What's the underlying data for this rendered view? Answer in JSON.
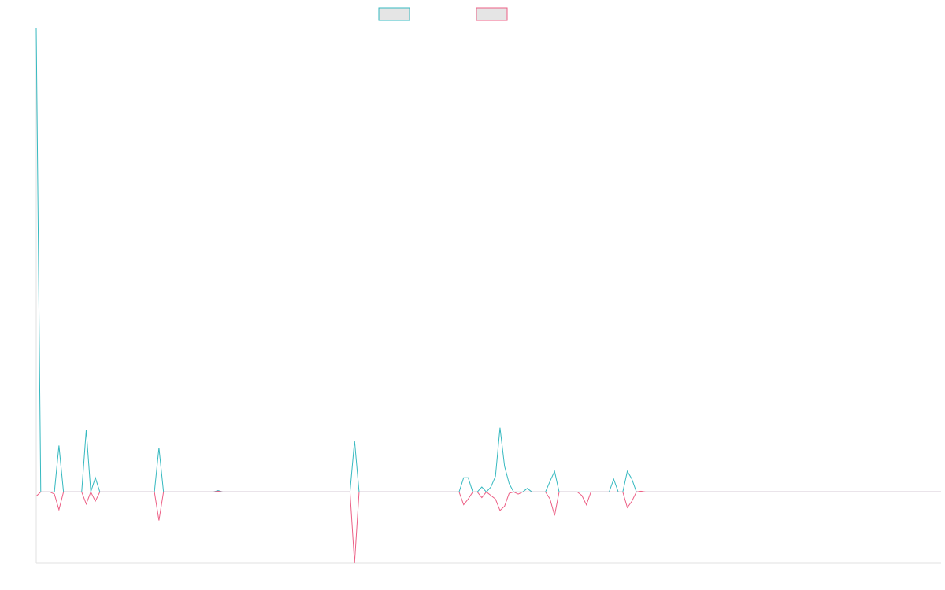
{
  "chart_data": {
    "type": "line",
    "x_count": 200,
    "ylim": [
      -1.0,
      6.5
    ],
    "grid": false,
    "legend": {
      "placement": "top-center"
    },
    "series": [
      {
        "color": "#36b9c0",
        "fill": "#e5e5e5",
        "points": [
          [
            0,
            6.5
          ],
          [
            1,
            0.0
          ],
          [
            4,
            0.0
          ],
          [
            5,
            0.65
          ],
          [
            6,
            0.0
          ],
          [
            10,
            0.0
          ],
          [
            11,
            0.87
          ],
          [
            12,
            0.0
          ],
          [
            13,
            0.2
          ],
          [
            14,
            0.0
          ],
          [
            26,
            0.0
          ],
          [
            27,
            0.62
          ],
          [
            28,
            0.0
          ],
          [
            39,
            0.0
          ],
          [
            40,
            0.02
          ],
          [
            41,
            0.0
          ],
          [
            69,
            0.0
          ],
          [
            70,
            0.72
          ],
          [
            71,
            0.0
          ],
          [
            93,
            0.0
          ],
          [
            94,
            0.2
          ],
          [
            95,
            0.2
          ],
          [
            96,
            0.0
          ],
          [
            97,
            0.0
          ],
          [
            98,
            0.07
          ],
          [
            99,
            0.0
          ],
          [
            100,
            0.07
          ],
          [
            101,
            0.22
          ],
          [
            102,
            0.9
          ],
          [
            103,
            0.36
          ],
          [
            104,
            0.12
          ],
          [
            105,
            0.0
          ],
          [
            107,
            0.0
          ],
          [
            108,
            0.05
          ],
          [
            109,
            0.0
          ],
          [
            112,
            0.0
          ],
          [
            113,
            0.15
          ],
          [
            114,
            0.29
          ],
          [
            115,
            0.0
          ],
          [
            126,
            0.0
          ],
          [
            127,
            0.18
          ],
          [
            128,
            0.0
          ],
          [
            129,
            0.0
          ],
          [
            130,
            0.29
          ],
          [
            131,
            0.18
          ],
          [
            132,
            0.0
          ],
          [
            199,
            0.0
          ]
        ]
      },
      {
        "color": "#ec5f85",
        "fill": "#e5e5e5",
        "points": [
          [
            0,
            -0.06
          ],
          [
            1,
            0.0
          ],
          [
            3,
            0.0
          ],
          [
            4,
            -0.03
          ],
          [
            5,
            -0.25
          ],
          [
            6,
            0.0
          ],
          [
            10,
            0.0
          ],
          [
            11,
            -0.17
          ],
          [
            12,
            0.0
          ],
          [
            13,
            -0.13
          ],
          [
            14,
            0.0
          ],
          [
            26,
            0.0
          ],
          [
            27,
            -0.4
          ],
          [
            28,
            0.0
          ],
          [
            39,
            0.0
          ],
          [
            40,
            0.01
          ],
          [
            41,
            0.0
          ],
          [
            69,
            0.0
          ],
          [
            70,
            -1.0
          ],
          [
            71,
            0.0
          ],
          [
            93,
            0.0
          ],
          [
            94,
            -0.18
          ],
          [
            95,
            -0.1
          ],
          [
            96,
            0.0
          ],
          [
            97,
            0.0
          ],
          [
            98,
            -0.08
          ],
          [
            99,
            0.0
          ],
          [
            100,
            -0.05
          ],
          [
            101,
            -0.1
          ],
          [
            102,
            -0.26
          ],
          [
            103,
            -0.2
          ],
          [
            104,
            -0.02
          ],
          [
            105,
            0.0
          ],
          [
            106,
            -0.03
          ],
          [
            107,
            0.0
          ],
          [
            108,
            0.0
          ],
          [
            112,
            0.0
          ],
          [
            113,
            -0.1
          ],
          [
            114,
            -0.33
          ],
          [
            115,
            0.0
          ],
          [
            119,
            0.0
          ],
          [
            120,
            -0.05
          ],
          [
            121,
            -0.18
          ],
          [
            122,
            0.0
          ],
          [
            126,
            0.0
          ],
          [
            127,
            0.0
          ],
          [
            129,
            0.0
          ],
          [
            130,
            -0.22
          ],
          [
            131,
            -0.13
          ],
          [
            132,
            0.0
          ],
          [
            133,
            0.01
          ],
          [
            134,
            0.0
          ],
          [
            199,
            0.0
          ]
        ]
      }
    ]
  }
}
